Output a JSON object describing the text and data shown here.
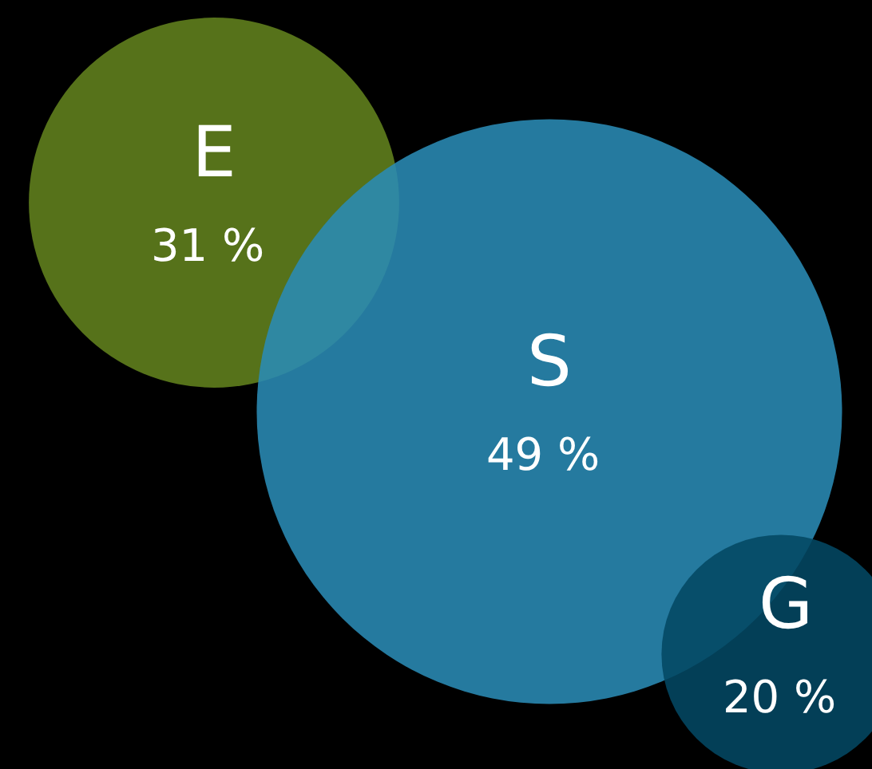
{
  "chart_data": {
    "type": "other",
    "categories": [
      "E",
      "S",
      "G"
    ],
    "values": [
      31,
      49,
      20
    ],
    "value_labels": [
      "31 %",
      "49 %",
      "20 %"
    ],
    "colors": [
      "#62821e",
      "#2a8bb5",
      "#034863"
    ]
  }
}
